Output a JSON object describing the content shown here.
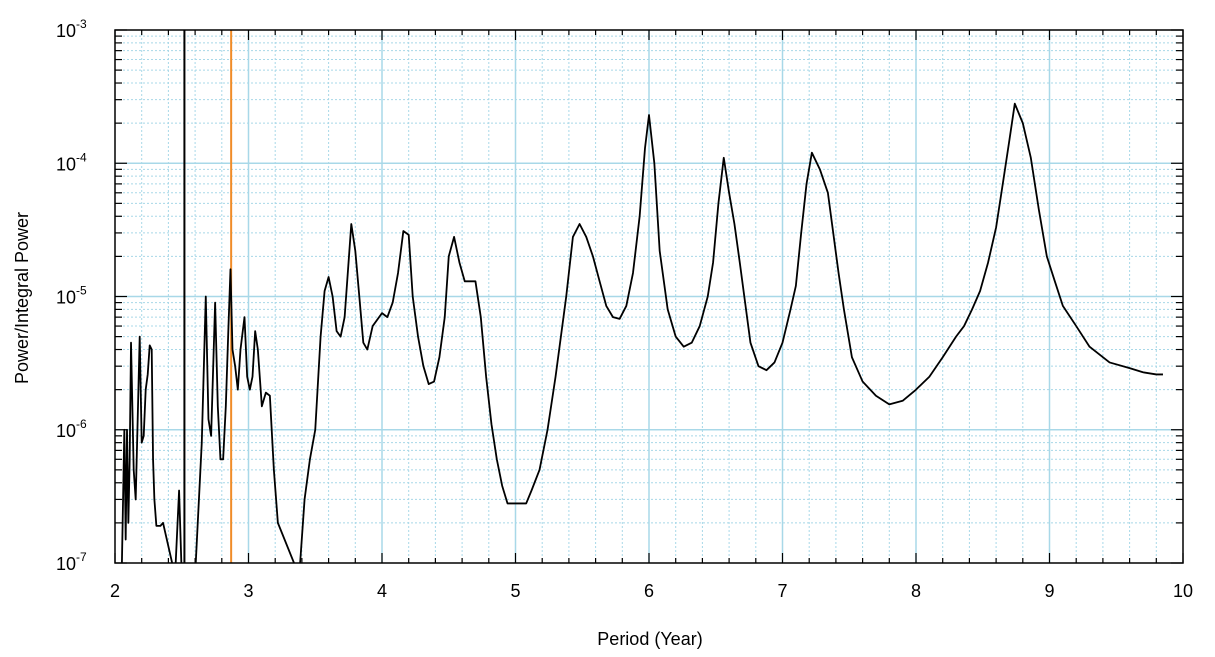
{
  "chart_data": {
    "type": "line",
    "xlabel": "Period (Year)",
    "ylabel": "Power/Integral Power",
    "xlim": [
      2,
      10
    ],
    "ylim": [
      1e-07,
      0.001
    ],
    "yscale": "log",
    "grid": true,
    "x_ticks": [
      "2",
      "3",
      "4",
      "5",
      "6",
      "7",
      "8",
      "9",
      "10"
    ],
    "y_ticks": [
      {
        "base": "10",
        "exp": "-7"
      },
      {
        "base": "10",
        "exp": "-6"
      },
      {
        "base": "10",
        "exp": "-5"
      },
      {
        "base": "10",
        "exp": "-4"
      },
      {
        "base": "10",
        "exp": "-3"
      }
    ],
    "colors": {
      "series": "#000000",
      "grid": "#a8d8e8",
      "marker_line": "#f08c28",
      "vline": "#000000"
    },
    "vertical_lines": [
      {
        "x": 2.52,
        "color": "#000000"
      },
      {
        "x": 2.87,
        "color": "#f08c28"
      }
    ],
    "series": [
      {
        "values": [
          [
            2.05,
            8e-08
          ],
          [
            2.07,
            1e-06
          ],
          [
            2.08,
            1.5e-07
          ],
          [
            2.09,
            1e-06
          ],
          [
            2.1,
            2e-07
          ],
          [
            2.11,
            6e-07
          ],
          [
            2.12,
            4.5e-06
          ],
          [
            2.13,
            1.5e-06
          ],
          [
            2.14,
            5e-07
          ],
          [
            2.155,
            3e-07
          ],
          [
            2.17,
            1.2e-06
          ],
          [
            2.185,
            5e-06
          ],
          [
            2.2,
            8e-07
          ],
          [
            2.215,
            9e-07
          ],
          [
            2.23,
            2e-06
          ],
          [
            2.245,
            2.6e-06
          ],
          [
            2.26,
            4.3e-06
          ],
          [
            2.275,
            4e-06
          ],
          [
            2.285,
            6e-07
          ],
          [
            2.295,
            3e-07
          ],
          [
            2.31,
            1.9e-07
          ],
          [
            2.34,
            1.9e-07
          ],
          [
            2.36,
            2e-07
          ],
          [
            2.45,
            8e-08
          ],
          [
            2.48,
            3.5e-07
          ],
          [
            2.5,
            8e-08
          ],
          [
            2.6,
            8e-08
          ],
          [
            2.65,
            8e-07
          ],
          [
            2.68,
            1e-05
          ],
          [
            2.7,
            1.2e-06
          ],
          [
            2.72,
            9e-07
          ],
          [
            2.75,
            9e-06
          ],
          [
            2.77,
            1.5e-06
          ],
          [
            2.79,
            6e-07
          ],
          [
            2.81,
            6e-07
          ],
          [
            2.83,
            1.5e-06
          ],
          [
            2.85,
            6e-06
          ],
          [
            2.865,
            1.6e-05
          ],
          [
            2.88,
            4e-06
          ],
          [
            2.9,
            3e-06
          ],
          [
            2.92,
            2e-06
          ],
          [
            2.94,
            4e-06
          ],
          [
            2.97,
            7e-06
          ],
          [
            2.99,
            2.5e-06
          ],
          [
            3.01,
            2e-06
          ],
          [
            3.03,
            2.5e-06
          ],
          [
            3.05,
            5.5e-06
          ],
          [
            3.07,
            4e-06
          ],
          [
            3.1,
            1.5e-06
          ],
          [
            3.13,
            1.9e-06
          ],
          [
            3.16,
            1.8e-06
          ],
          [
            3.19,
            5e-07
          ],
          [
            3.22,
            2e-07
          ],
          [
            3.38,
            8e-08
          ],
          [
            3.42,
            3e-07
          ],
          [
            3.46,
            6e-07
          ],
          [
            3.5,
            1e-06
          ],
          [
            3.54,
            5e-06
          ],
          [
            3.57,
            1.1e-05
          ],
          [
            3.6,
            1.4e-05
          ],
          [
            3.63,
            1e-05
          ],
          [
            3.66,
            5.5e-06
          ],
          [
            3.69,
            5e-06
          ],
          [
            3.72,
            7e-06
          ],
          [
            3.77,
            3.5e-05
          ],
          [
            3.8,
            2.2e-05
          ],
          [
            3.83,
            1e-05
          ],
          [
            3.86,
            4.5e-06
          ],
          [
            3.89,
            4e-06
          ],
          [
            3.93,
            6e-06
          ],
          [
            4.0,
            7.5e-06
          ],
          [
            4.04,
            7e-06
          ],
          [
            4.08,
            9e-06
          ],
          [
            4.12,
            1.5e-05
          ],
          [
            4.16,
            3.1e-05
          ],
          [
            4.2,
            2.9e-05
          ],
          [
            4.23,
            1e-05
          ],
          [
            4.27,
            5e-06
          ],
          [
            4.31,
            3e-06
          ],
          [
            4.35,
            2.2e-06
          ],
          [
            4.39,
            2.3e-06
          ],
          [
            4.43,
            3.5e-06
          ],
          [
            4.47,
            7e-06
          ],
          [
            4.5,
            2e-05
          ],
          [
            4.54,
            2.8e-05
          ],
          [
            4.58,
            1.8e-05
          ],
          [
            4.62,
            1.3e-05
          ],
          [
            4.66,
            1.3e-05
          ],
          [
            4.7,
            1.3e-05
          ],
          [
            4.74,
            7e-06
          ],
          [
            4.78,
            2.5e-06
          ],
          [
            4.82,
            1.1e-06
          ],
          [
            4.86,
            6e-07
          ],
          [
            4.9,
            3.8e-07
          ],
          [
            4.94,
            2.8e-07
          ],
          [
            5.0,
            2.8e-07
          ],
          [
            5.08,
            2.8e-07
          ],
          [
            5.12,
            3.5e-07
          ],
          [
            5.18,
            5e-07
          ],
          [
            5.24,
            1e-06
          ],
          [
            5.3,
            2.5e-06
          ],
          [
            5.34,
            5e-06
          ],
          [
            5.38,
            1e-05
          ],
          [
            5.43,
            2.8e-05
          ],
          [
            5.48,
            3.5e-05
          ],
          [
            5.53,
            2.8e-05
          ],
          [
            5.58,
            2e-05
          ],
          [
            5.63,
            1.3e-05
          ],
          [
            5.68,
            8.5e-06
          ],
          [
            5.73,
            7e-06
          ],
          [
            5.78,
            6.8e-06
          ],
          [
            5.83,
            8.5e-06
          ],
          [
            5.88,
            1.5e-05
          ],
          [
            5.93,
            4e-05
          ],
          [
            5.97,
            0.00013
          ],
          [
            6.0,
            0.00023
          ],
          [
            6.04,
            0.0001
          ],
          [
            6.08,
            2.2e-05
          ],
          [
            6.14,
            8e-06
          ],
          [
            6.2,
            5e-06
          ],
          [
            6.26,
            4.2e-06
          ],
          [
            6.32,
            4.5e-06
          ],
          [
            6.38,
            6e-06
          ],
          [
            6.44,
            1e-05
          ],
          [
            6.48,
            1.8e-05
          ],
          [
            6.52,
            5e-05
          ],
          [
            6.56,
            0.00011
          ],
          [
            6.6,
            6e-05
          ],
          [
            6.64,
            3.5e-05
          ],
          [
            6.68,
            1.8e-05
          ],
          [
            6.72,
            9e-06
          ],
          [
            6.76,
            4.5e-06
          ],
          [
            6.82,
            3e-06
          ],
          [
            6.88,
            2.8e-06
          ],
          [
            6.94,
            3.2e-06
          ],
          [
            7.0,
            4.5e-06
          ],
          [
            7.06,
            8e-06
          ],
          [
            7.1,
            1.2e-05
          ],
          [
            7.14,
            3e-05
          ],
          [
            7.18,
            7e-05
          ],
          [
            7.22,
            0.00012
          ],
          [
            7.28,
            9e-05
          ],
          [
            7.34,
            6e-05
          ],
          [
            7.38,
            3e-05
          ],
          [
            7.42,
            1.5e-05
          ],
          [
            7.46,
            8e-06
          ],
          [
            7.52,
            3.5e-06
          ],
          [
            7.6,
            2.3e-06
          ],
          [
            7.7,
            1.8e-06
          ],
          [
            7.8,
            1.55e-06
          ],
          [
            7.9,
            1.65e-06
          ],
          [
            8.0,
            2e-06
          ],
          [
            8.1,
            2.5e-06
          ],
          [
            8.2,
            3.5e-06
          ],
          [
            8.3,
            5e-06
          ],
          [
            8.36,
            6e-06
          ],
          [
            8.42,
            8e-06
          ],
          [
            8.48,
            1.1e-05
          ],
          [
            8.54,
            1.8e-05
          ],
          [
            8.6,
            3.3e-05
          ],
          [
            8.65,
            7e-05
          ],
          [
            8.7,
            0.00015
          ],
          [
            8.74,
            0.00028
          ],
          [
            8.8,
            0.0002
          ],
          [
            8.86,
            0.00011
          ],
          [
            8.92,
            4.5e-05
          ],
          [
            8.98,
            2e-05
          ],
          [
            9.04,
            1.3e-05
          ],
          [
            9.1,
            8.5e-06
          ],
          [
            9.2,
            6e-06
          ],
          [
            9.3,
            4.2e-06
          ],
          [
            9.45,
            3.2e-06
          ],
          [
            9.6,
            2.9e-06
          ],
          [
            9.7,
            2.7e-06
          ],
          [
            9.8,
            2.6e-06
          ],
          [
            9.85,
            2.6e-06
          ]
        ]
      }
    ]
  }
}
